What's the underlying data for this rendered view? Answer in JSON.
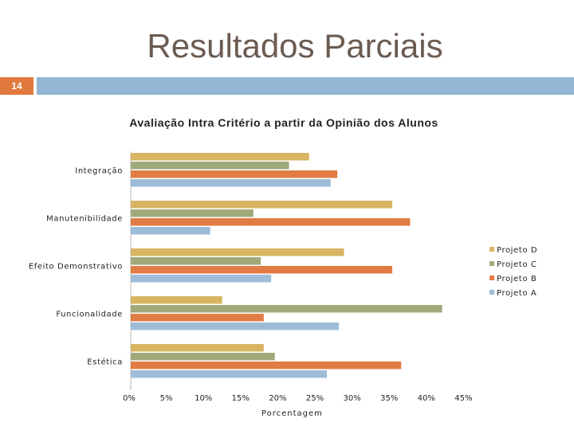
{
  "slide": {
    "title": "Resultados Parciais",
    "number": "14"
  },
  "colors": {
    "accent_orange": "#e0793b",
    "accent_blue": "#94b5d4",
    "title_color": "#6b5b51"
  },
  "chart_data": {
    "type": "bar",
    "orientation": "horizontal",
    "title": "Avaliação Intra Critério a partir da Opinião dos Alunos",
    "xlabel": "Porcentagem",
    "ylabel": "",
    "xlim": [
      0,
      45
    ],
    "xticks": [
      "0%",
      "5%",
      "10%",
      "15%",
      "20%",
      "25%",
      "30%",
      "35%",
      "40%",
      "45%"
    ],
    "categories": [
      "Integração",
      "Manutenibilidade",
      "Efeito Demonstrativo",
      "Funcionalidade",
      "Estética"
    ],
    "series": [
      {
        "name": "Projeto D",
        "color": "#d8b463",
        "values": [
          24,
          35.2,
          28.7,
          12.3,
          17.9
        ]
      },
      {
        "name": "Projeto C",
        "color": "#9fa97a",
        "values": [
          21.3,
          16.5,
          17.5,
          41.9,
          19.4
        ]
      },
      {
        "name": "Projeto B",
        "color": "#e07c44",
        "values": [
          27.8,
          37.6,
          35.2,
          17.9,
          36.4
        ]
      },
      {
        "name": "Projeto A",
        "color": "#9ebcd8",
        "values": [
          26.9,
          10.7,
          18.9,
          28,
          26.4
        ]
      }
    ],
    "legend_position": "right",
    "grid": false
  }
}
